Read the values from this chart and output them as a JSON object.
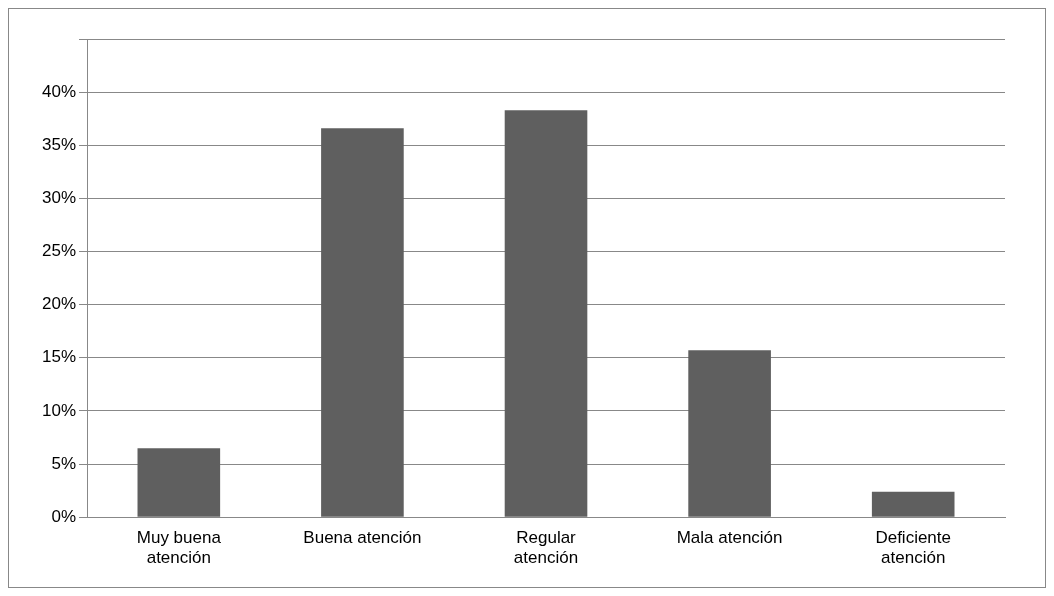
{
  "chart_data": {
    "type": "bar",
    "categories": [
      "Muy buena atención",
      "Buena atención",
      "Regular atención",
      "Mala atención",
      "Deficiente atención"
    ],
    "values": [
      6.5,
      36.6,
      38.3,
      15.7,
      2.4
    ],
    "color": "#5f5f5f",
    "ylim": [
      0,
      45
    ],
    "yticks": [
      {
        "value": 0,
        "label": "0%"
      },
      {
        "value": 5,
        "label": "5%"
      },
      {
        "value": 10,
        "label": "10%"
      },
      {
        "value": 15,
        "label": "15%"
      },
      {
        "value": 20,
        "label": "20%"
      },
      {
        "value": 25,
        "label": "25%"
      },
      {
        "value": 30,
        "label": "30%"
      },
      {
        "value": 35,
        "label": "35%"
      },
      {
        "value": 40,
        "label": "40%"
      },
      {
        "value": 45,
        "label": null
      }
    ],
    "grid": "y",
    "legend": false
  }
}
